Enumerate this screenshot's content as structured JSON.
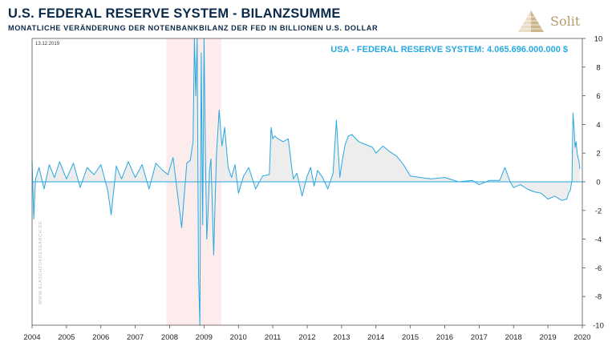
{
  "header": {
    "title": "U.S. FEDERAL RESERVE SYSTEM - BILANZSUMME",
    "subtitle": "MONATLICHE VERÄNDERUNG DER NOTENBANKBILANZ DER FED IN BILLIONEN U.S. DOLLAR"
  },
  "logo": {
    "text": "Solit",
    "color": "#b89a6a"
  },
  "date_label": "13.12.2019",
  "watermark": "WWW.BLASCHZOKRESEARCH.DE",
  "colors": {
    "series": "#28a8e0",
    "fill": "#ebebeb",
    "recession": "#fdecec"
  },
  "chart_data": {
    "type": "line",
    "title": "USA - FEDERAL RESERVE SYSTEM: 4.065.696.000.000 $",
    "x_ticks": [
      "2004",
      "2005",
      "2006",
      "2007",
      "2008",
      "2009",
      "2010",
      "2011",
      "2012",
      "2013",
      "2014",
      "2015",
      "2016",
      "2017",
      "2018",
      "2019",
      "2020"
    ],
    "y_ticks": [
      "10",
      "8",
      "6",
      "4",
      "2",
      "0",
      "-2",
      "-4",
      "-6",
      "-8",
      "-10"
    ],
    "xlim": [
      2004,
      2020
    ],
    "ylim": [
      -10,
      10
    ],
    "y_axis_side": "right",
    "shaded_period": [
      2007.9,
      2009.5
    ],
    "series": [
      {
        "x": [
          2004.0,
          2004.05,
          2004.1,
          2004.2,
          2004.35,
          2004.5,
          2004.65,
          2004.8,
          2005.0,
          2005.2,
          2005.4,
          2005.6,
          2005.8,
          2006.0,
          2006.2,
          2006.3,
          2006.45,
          2006.6,
          2006.8,
          2007.0,
          2007.2,
          2007.4,
          2007.6,
          2007.8,
          2007.95,
          2008.1,
          2008.2,
          2008.35,
          2008.5,
          2008.6,
          2008.68,
          2008.72,
          2008.76,
          2008.8,
          2008.84,
          2008.88,
          2008.92,
          2008.96,
          2009.0,
          2009.04,
          2009.08,
          2009.12,
          2009.16,
          2009.2,
          2009.28,
          2009.36,
          2009.44,
          2009.52,
          2009.6,
          2009.7,
          2009.8,
          2009.9,
          2010.0,
          2010.15,
          2010.3,
          2010.5,
          2010.7,
          2010.9,
          2010.95,
          2011.0,
          2011.05,
          2011.15,
          2011.3,
          2011.45,
          2011.55,
          2011.6,
          2011.7,
          2011.85,
          2012.0,
          2012.1,
          2012.2,
          2012.3,
          2012.45,
          2012.6,
          2012.75,
          2012.85,
          2012.95,
          2013.0,
          2013.1,
          2013.2,
          2013.3,
          2013.5,
          2013.7,
          2013.9,
          2014.0,
          2014.2,
          2014.4,
          2014.6,
          2014.8,
          2015.0,
          2015.3,
          2015.6,
          2016.0,
          2016.4,
          2016.8,
          2017.0,
          2017.3,
          2017.6,
          2017.75,
          2017.9,
          2018.0,
          2018.2,
          2018.4,
          2018.6,
          2018.8,
          2019.0,
          2019.2,
          2019.4,
          2019.55,
          2019.6,
          2019.65,
          2019.7,
          2019.73,
          2019.76,
          2019.79,
          2019.82,
          2019.85,
          2019.88,
          2019.9,
          2019.93
        ],
        "y": [
          1.5,
          -2.6,
          0.2,
          1.0,
          -0.5,
          1.2,
          0.3,
          1.4,
          0.2,
          1.3,
          -0.4,
          1.0,
          0.5,
          1.2,
          -0.6,
          -2.3,
          1.1,
          0.2,
          1.4,
          0.3,
          1.2,
          -0.5,
          1.3,
          0.8,
          0.5,
          1.7,
          -0.3,
          -3.2,
          1.3,
          1.5,
          2.8,
          10.0,
          6.0,
          10.0,
          -6.5,
          -10.0,
          9.0,
          -3.0,
          10.0,
          2.0,
          -4.0,
          -2.0,
          0.8,
          1.6,
          -5.1,
          1.8,
          5.0,
          2.5,
          3.8,
          1.0,
          0.3,
          1.2,
          -0.8,
          0.4,
          1.0,
          -0.5,
          0.4,
          0.5,
          3.8,
          3.0,
          3.2,
          3.0,
          2.8,
          3.0,
          1.0,
          0.2,
          0.6,
          -1.0,
          0.4,
          1.0,
          -0.3,
          0.8,
          0.3,
          -0.5,
          0.6,
          4.3,
          0.3,
          1.2,
          2.6,
          3.2,
          3.3,
          2.8,
          2.6,
          2.4,
          2.0,
          2.5,
          2.1,
          1.8,
          1.2,
          0.4,
          0.3,
          0.2,
          0.3,
          0.0,
          0.1,
          -0.2,
          0.1,
          0.1,
          1.0,
          0.0,
          -0.4,
          -0.2,
          -0.5,
          -0.7,
          -0.8,
          -1.2,
          -1.0,
          -1.3,
          -1.2,
          -0.8,
          -0.6,
          0.1,
          4.8,
          3.8,
          2.4,
          2.8,
          2.0,
          1.6,
          1.5,
          0.9
        ]
      }
    ]
  }
}
